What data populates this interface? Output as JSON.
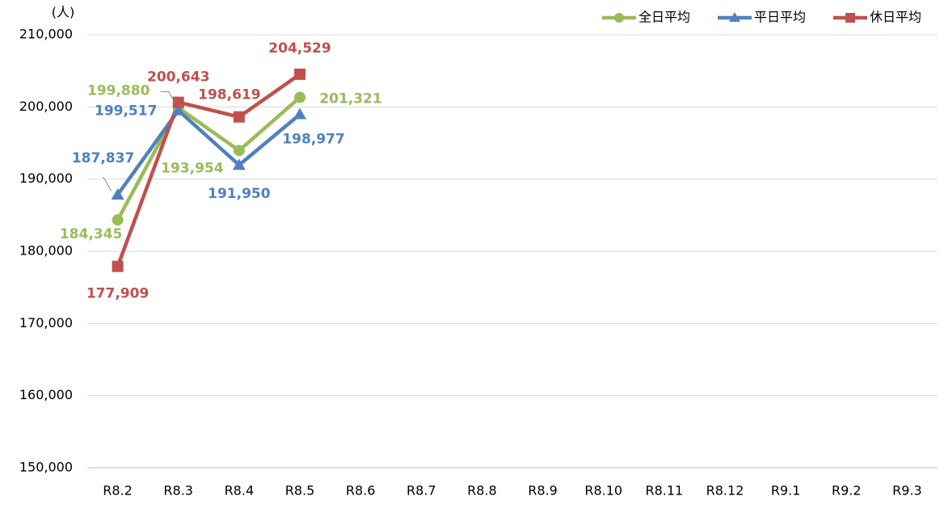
{
  "chart_data": {
    "type": "line",
    "y_label": "(人)",
    "categories": [
      "R8.2",
      "R8.3",
      "R8.4",
      "R8.5",
      "R8.6",
      "R8.7",
      "R8.8",
      "R8.9",
      "R8.10",
      "R8.11",
      "R8.12",
      "R9.1",
      "R9.2",
      "R9.3"
    ],
    "series": [
      {
        "name": "全日平均",
        "color": "#9bbb59",
        "marker": "circle",
        "values": [
          184345,
          199880,
          193954,
          201321,
          null,
          null,
          null,
          null,
          null,
          null,
          null,
          null,
          null,
          null
        ],
        "value_labels": [
          "184,345",
          "199,880",
          "193,954",
          "201,321",
          null,
          null,
          null,
          null,
          null,
          null,
          null,
          null,
          null,
          null
        ]
      },
      {
        "name": "平日平均",
        "color": "#4f81bd",
        "marker": "triangle",
        "values": [
          187837,
          199517,
          191950,
          198977,
          null,
          null,
          null,
          null,
          null,
          null,
          null,
          null,
          null,
          null
        ],
        "value_labels": [
          "187,837",
          "199,517",
          "191,950",
          "198,977",
          null,
          null,
          null,
          null,
          null,
          null,
          null,
          null,
          null,
          null
        ]
      },
      {
        "name": "休日平均",
        "color": "#c0504d",
        "marker": "square",
        "values": [
          177909,
          200643,
          198619,
          204529,
          null,
          null,
          null,
          null,
          null,
          null,
          null,
          null,
          null,
          null
        ],
        "value_labels": [
          "177,909",
          "200,643",
          "198,619",
          "204,529",
          null,
          null,
          null,
          null,
          null,
          null,
          null,
          null,
          null,
          null
        ]
      }
    ],
    "ylim": [
      150000,
      210000
    ],
    "yticks": [
      {
        "value": 150000,
        "label": "150,000"
      },
      {
        "value": 160000,
        "label": "160,000"
      },
      {
        "value": 170000,
        "label": "170,000"
      },
      {
        "value": 180000,
        "label": "180,000"
      },
      {
        "value": 190000,
        "label": "190,000"
      },
      {
        "value": 200000,
        "label": "200,000"
      },
      {
        "value": 210000,
        "label": "210,000"
      }
    ],
    "grid": true,
    "legend": "top-right"
  }
}
